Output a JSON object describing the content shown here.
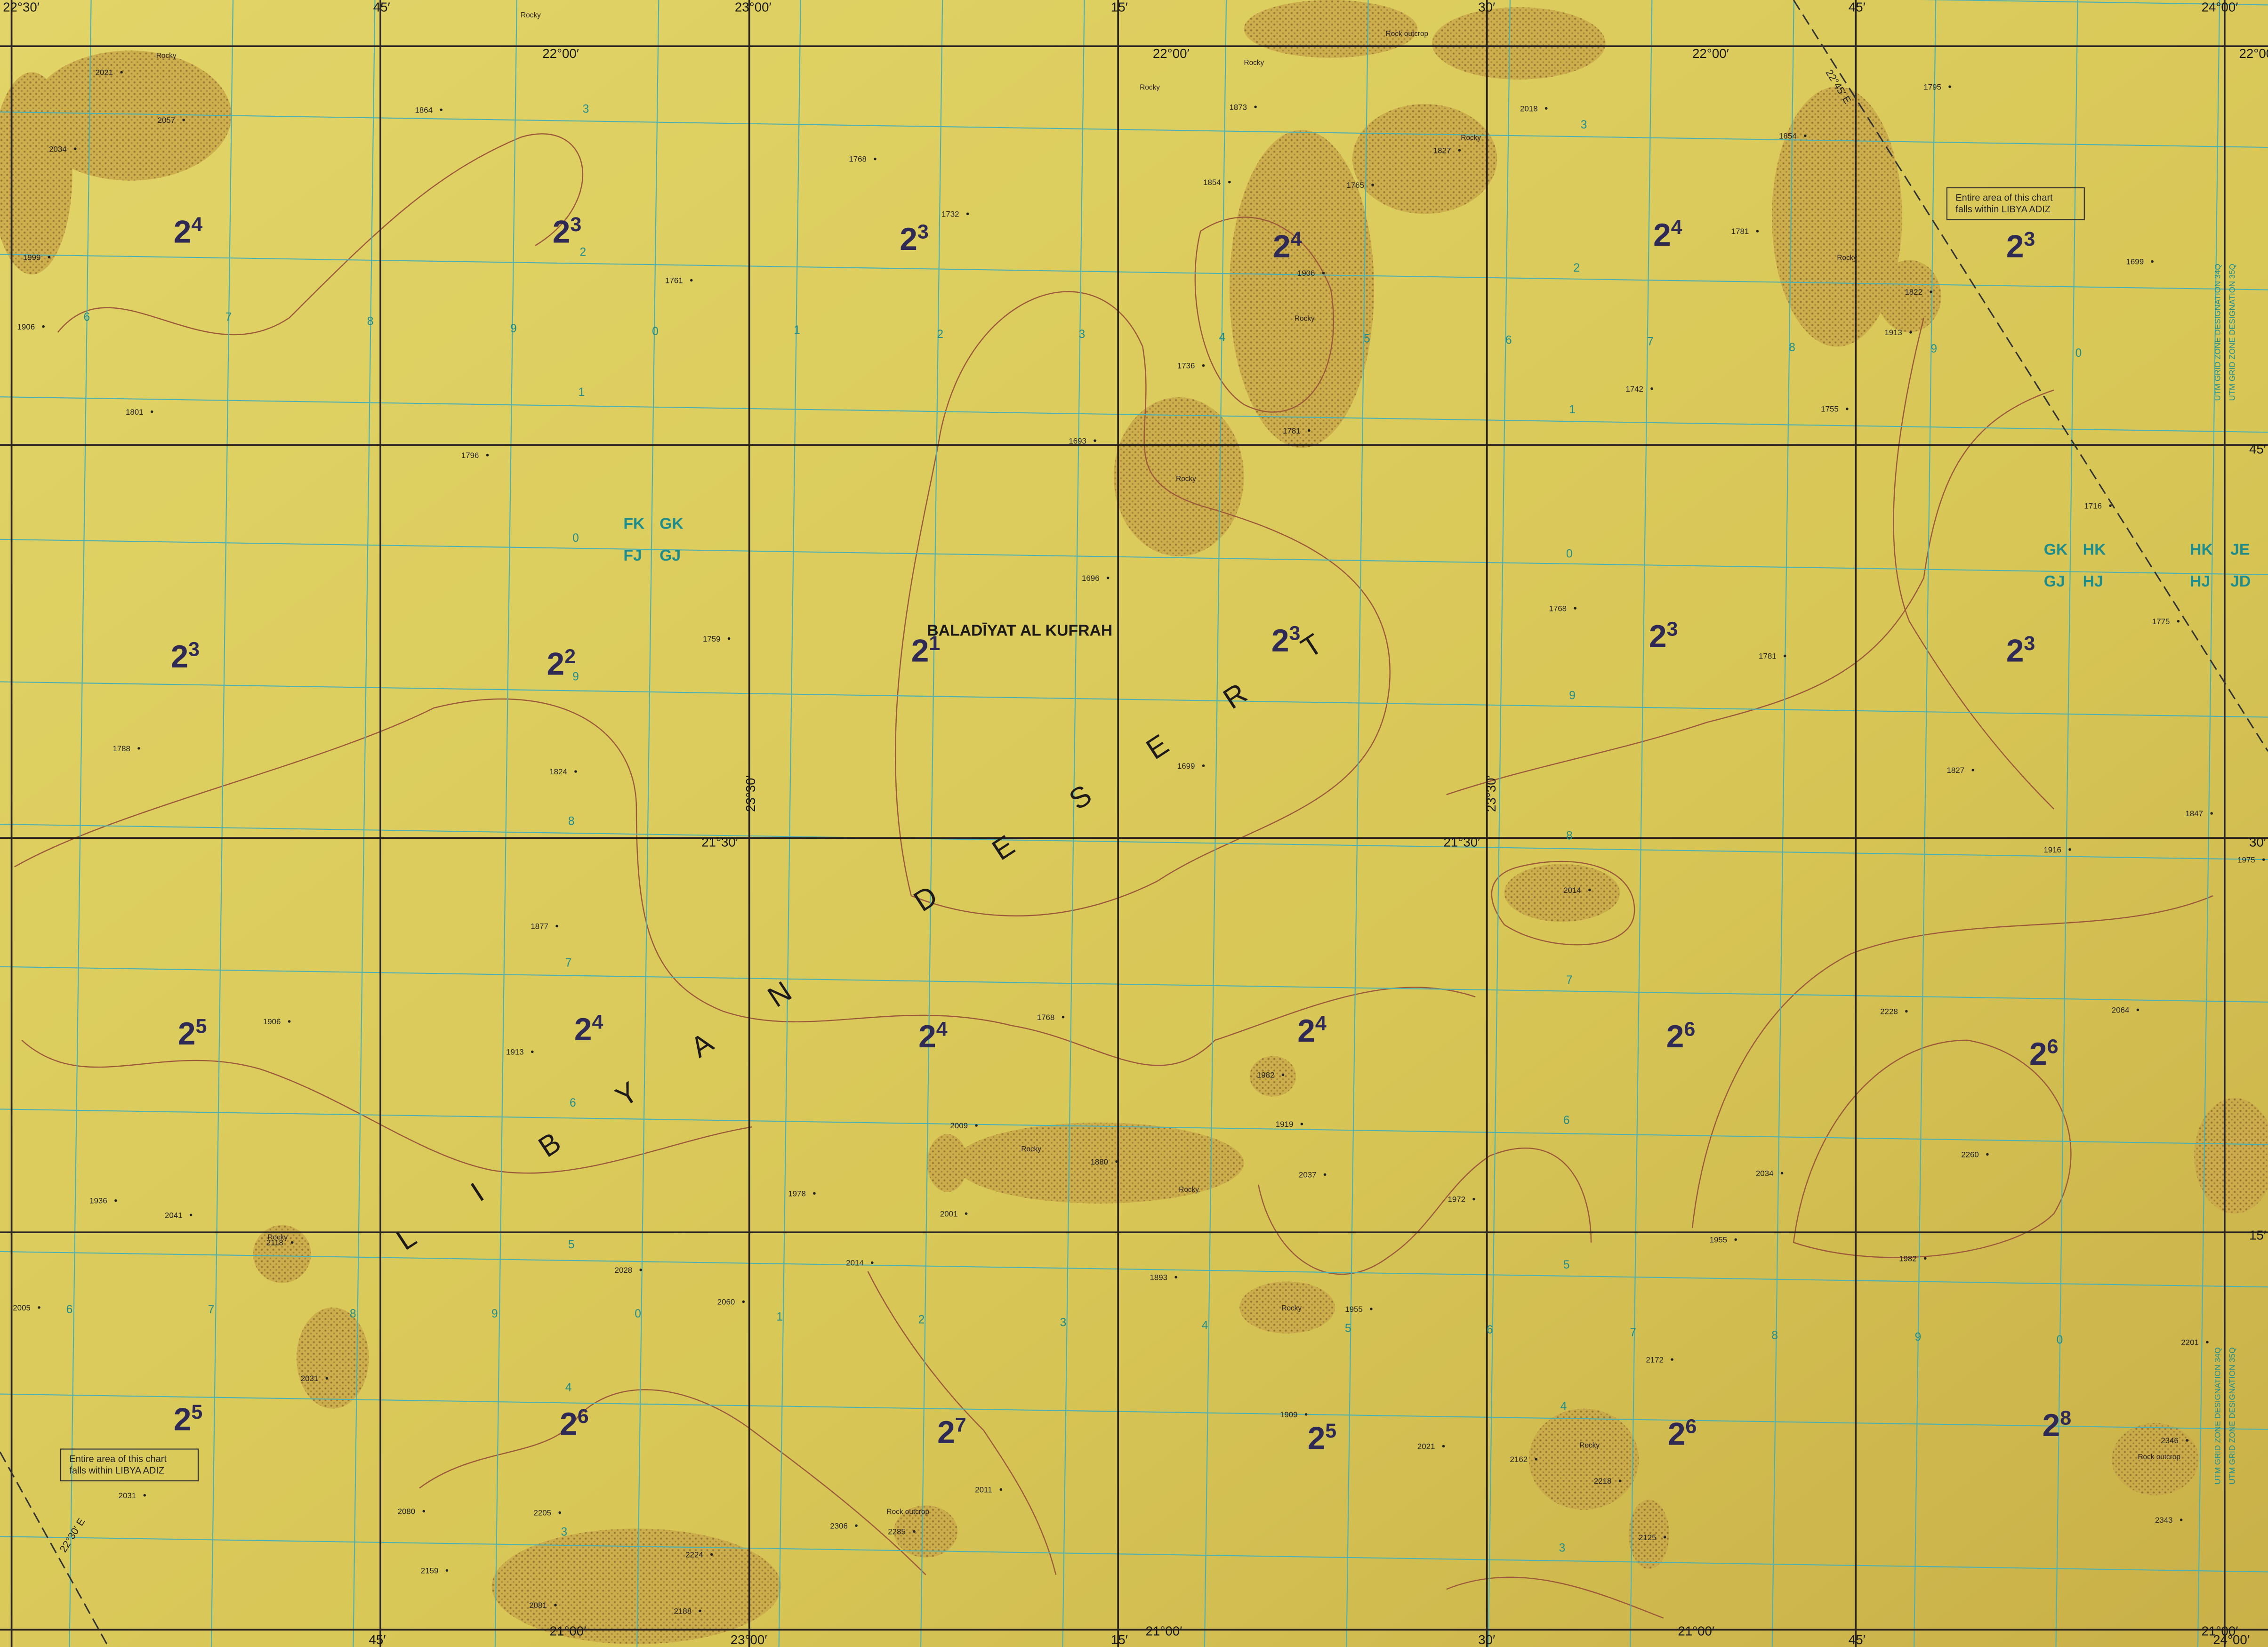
{
  "map": {
    "place_name": "BALADĪYAT AL KUFRAH",
    "region_label": "LIBYAN DESERT",
    "adiz_notes": [
      [
        "Entire area of this chart",
        "falls within LIBYA ADIZ"
      ],
      [
        "Entire area of this chart",
        "falls within LIBYA ADIZ"
      ]
    ],
    "max_elevation_figures": [
      {
        "main": "2",
        "sup": "4"
      },
      {
        "main": "2",
        "sup": "3"
      },
      {
        "main": "2",
        "sup": "3"
      },
      {
        "main": "2",
        "sup": "4"
      },
      {
        "main": "2",
        "sup": "4"
      },
      {
        "main": "2",
        "sup": "3"
      },
      {
        "main": "2",
        "sup": "3"
      },
      {
        "main": "2",
        "sup": "2"
      },
      {
        "main": "2",
        "sup": "1"
      },
      {
        "main": "2",
        "sup": "3"
      },
      {
        "main": "2",
        "sup": "3"
      },
      {
        "main": "2",
        "sup": "3"
      },
      {
        "main": "2",
        "sup": "5"
      },
      {
        "main": "2",
        "sup": "4"
      },
      {
        "main": "2",
        "sup": "4"
      },
      {
        "main": "2",
        "sup": "4"
      },
      {
        "main": "2",
        "sup": "6"
      },
      {
        "main": "2",
        "sup": "6"
      },
      {
        "main": "2",
        "sup": "5"
      },
      {
        "main": "2",
        "sup": "6"
      },
      {
        "main": "2",
        "sup": "7"
      },
      {
        "main": "2",
        "sup": "5"
      },
      {
        "main": "2",
        "sup": "6"
      },
      {
        "main": "2",
        "sup": "8"
      }
    ],
    "graticule_labels": [
      "22°30′",
      "45′",
      "23°00′",
      "15′",
      "30′",
      "45′",
      "24°00′",
      "22°00′",
      "22°00′",
      "22°00′",
      "22°00′",
      "21°30′",
      "21°30′",
      "23°30′",
      "23°30′",
      "21°00′",
      "21°00′",
      "21°00′",
      "21°00′",
      "45′",
      "30′",
      "15′",
      "45′",
      "23°00′",
      "15′",
      "30′",
      "45′",
      "24°00′"
    ],
    "grid_zone_designations": [
      "FK",
      "GK",
      "FJ",
      "GJ",
      "GK",
      "HK",
      "GJ",
      "HJ",
      "HK",
      "JE",
      "HJ",
      "JD"
    ],
    "zone_side_labels": [
      "UTM GRID ZONE DESIGNATION 34Q",
      "UTM GRID ZONE DESIGNATION 35Q",
      "UTM GRID ZONE DESIGNATION 34Q",
      "UTM GRID ZONE DESIGNATION 35Q"
    ],
    "meridian_labels": [
      "22°45′ E",
      "22°30′ E"
    ],
    "utm_labels": [
      "3",
      "2",
      "1",
      "0",
      "9",
      "8",
      "7",
      "6",
      "5",
      "4",
      "3",
      "3",
      "2",
      "1",
      "0",
      "9",
      "8",
      "7",
      "6",
      "5",
      "4",
      "3",
      "6",
      "7",
      "8",
      "9",
      "0",
      "1",
      "2",
      "3",
      "4",
      "5",
      "6",
      "7",
      "8",
      "9",
      "0",
      "6",
      "7",
      "8",
      "9",
      "0",
      "1",
      "2",
      "3",
      "4",
      "5",
      "6",
      "7",
      "8",
      "9",
      "0"
    ],
    "feature_labels": [
      "Rocky",
      "Rocky",
      "Rocky",
      "Rocky",
      "Rock outcrop",
      "Rocky",
      "Rocky",
      "Rocky",
      "Rocky",
      "Rocky",
      "Rocky",
      "Rocky",
      "Rock outcrop",
      "Rocky",
      "Rock outcrop",
      "Rocky"
    ],
    "spot_elevations": [
      2057,
      2021,
      2034,
      1999,
      1906,
      1801,
      1864,
      1796,
      1768,
      1732,
      1761,
      1693,
      1696,
      1759,
      1788,
      1824,
      1699,
      1873,
      1854,
      1765,
      1827,
      1906,
      1736,
      1781,
      2018,
      1854,
      1781,
      1742,
      1755,
      1795,
      1822,
      1913,
      1699,
      1716,
      1775,
      1768,
      1781,
      1827,
      1847,
      1916,
      1975,
      2014,
      1877,
      1768,
      1906,
      1913,
      1982,
      1919,
      2009,
      1880,
      1972,
      1936,
      2041,
      2118,
      1978,
      2001,
      2037,
      2034,
      2228,
      2064,
      2260,
      1955,
      1982,
      2014,
      1893,
      2028,
      2060,
      2005,
      2031,
      1955,
      2172,
      2201,
      1909,
      2021,
      2162,
      2218,
      2346,
      2031,
      2011,
      2080,
      2205,
      2306,
      2285,
      2125,
      2343,
      2159,
      2224,
      2081,
      2188
    ]
  }
}
